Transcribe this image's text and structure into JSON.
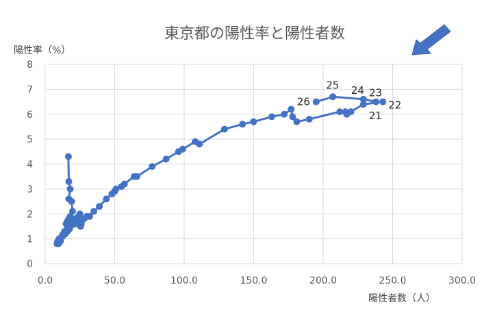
{
  "chart_data": {
    "type": "scatter",
    "title": "東京都の陽性率と陽性者数",
    "xlabel": "陽性者数（人）",
    "ylabel": "陽性率（%）",
    "xlim": [
      0,
      300
    ],
    "ylim": [
      0,
      8
    ],
    "x_ticks": [
      "0.0",
      "50.0",
      "100.0",
      "150.0",
      "200.0",
      "250.0",
      "300.0"
    ],
    "y_ticks": [
      "0",
      "1",
      "2",
      "3",
      "4",
      "5",
      "6",
      "7",
      "8"
    ],
    "grid": true,
    "legend": "none",
    "series_color": "#4472C4",
    "series": [
      {
        "name": "陽性率と陽性者数",
        "points": [
          {
            "x": 16.7,
            "y": 4.3
          },
          {
            "x": 17.0,
            "y": 3.3
          },
          {
            "x": 18.0,
            "y": 3.0
          },
          {
            "x": 17.0,
            "y": 2.6
          },
          {
            "x": 19.0,
            "y": 2.5
          },
          {
            "x": 19.7,
            "y": 2.1
          },
          {
            "x": 18.0,
            "y": 1.9
          },
          {
            "x": 17.0,
            "y": 1.8
          },
          {
            "x": 16.0,
            "y": 1.7
          },
          {
            "x": 15.0,
            "y": 1.6
          },
          {
            "x": 16.0,
            "y": 1.5
          },
          {
            "x": 17.5,
            "y": 1.4
          },
          {
            "x": 19.0,
            "y": 1.6
          },
          {
            "x": 21.0,
            "y": 1.8
          },
          {
            "x": 20.0,
            "y": 1.7
          },
          {
            "x": 22.0,
            "y": 1.8
          },
          {
            "x": 24.0,
            "y": 1.9
          },
          {
            "x": 25.0,
            "y": 2.0
          },
          {
            "x": 26.0,
            "y": 1.8
          },
          {
            "x": 25.0,
            "y": 1.6
          },
          {
            "x": 25.5,
            "y": 1.5
          },
          {
            "x": 26.0,
            "y": 1.6
          },
          {
            "x": 24.0,
            "y": 1.7
          },
          {
            "x": 22.0,
            "y": 1.6
          },
          {
            "x": 19.0,
            "y": 1.7
          },
          {
            "x": 17.0,
            "y": 1.6
          },
          {
            "x": 15.5,
            "y": 1.6
          },
          {
            "x": 14.0,
            "y": 1.3
          },
          {
            "x": 13.0,
            "y": 1.2
          },
          {
            "x": 12.0,
            "y": 1.1
          },
          {
            "x": 11.0,
            "y": 1.0
          },
          {
            "x": 10.0,
            "y": 1.0
          },
          {
            "x": 9.0,
            "y": 0.9
          },
          {
            "x": 8.5,
            "y": 0.8
          },
          {
            "x": 9.5,
            "y": 0.8
          },
          {
            "x": 11.0,
            "y": 0.9
          },
          {
            "x": 12.5,
            "y": 1.1
          },
          {
            "x": 14.5,
            "y": 1.2
          },
          {
            "x": 16.0,
            "y": 1.3
          },
          {
            "x": 28.0,
            "y": 1.8
          },
          {
            "x": 30.0,
            "y": 1.9
          },
          {
            "x": 32.0,
            "y": 1.9
          },
          {
            "x": 35.0,
            "y": 2.1
          },
          {
            "x": 39.0,
            "y": 2.3
          },
          {
            "x": 44.0,
            "y": 2.6
          },
          {
            "x": 48.0,
            "y": 2.8
          },
          {
            "x": 50.0,
            "y": 2.9
          },
          {
            "x": 51.0,
            "y": 3.0
          },
          {
            "x": 55.0,
            "y": 3.1
          },
          {
            "x": 57.0,
            "y": 3.2
          },
          {
            "x": 64.0,
            "y": 3.5
          },
          {
            "x": 66.0,
            "y": 3.5
          },
          {
            "x": 77.0,
            "y": 3.9
          },
          {
            "x": 87.0,
            "y": 4.2
          },
          {
            "x": 96.0,
            "y": 4.5
          },
          {
            "x": 99.0,
            "y": 4.6
          },
          {
            "x": 108.0,
            "y": 4.9
          },
          {
            "x": 111.0,
            "y": 4.8
          },
          {
            "x": 129.0,
            "y": 5.4
          },
          {
            "x": 142.0,
            "y": 5.6
          },
          {
            "x": 150.0,
            "y": 5.7
          },
          {
            "x": 163.0,
            "y": 5.9
          },
          {
            "x": 172.0,
            "y": 6.0
          },
          {
            "x": 177.0,
            "y": 6.2
          },
          {
            "x": 178.0,
            "y": 5.9
          },
          {
            "x": 181.0,
            "y": 5.7
          },
          {
            "x": 190.0,
            "y": 5.8
          },
          {
            "x": 212.0,
            "y": 6.1
          },
          {
            "x": 216.0,
            "y": 6.1
          },
          {
            "x": 217.0,
            "y": 6.0
          },
          {
            "x": 220.0,
            "y": 6.1
          },
          {
            "x": 229.0,
            "y": 6.4,
            "label": "21"
          },
          {
            "x": 243.0,
            "y": 6.5,
            "label": "22"
          },
          {
            "x": 238.0,
            "y": 6.5,
            "label": "23"
          },
          {
            "x": 229.0,
            "y": 6.6,
            "label": "24"
          },
          {
            "x": 207.0,
            "y": 6.7,
            "label": "25"
          },
          {
            "x": 195.0,
            "y": 6.5,
            "label": "26"
          }
        ]
      }
    ],
    "annotations": [
      {
        "type": "arrow",
        "direction": "down-left",
        "color": "#4472C4",
        "position": "top-right"
      },
      {
        "type": "point-labels",
        "labels": [
          "21",
          "22",
          "23",
          "24",
          "25",
          "26"
        ]
      }
    ]
  },
  "labels": {
    "title": "東京都の陽性率と陽性者数",
    "xlabel": "陽性者数（人）",
    "ylabel": "陽性率（%）"
  }
}
